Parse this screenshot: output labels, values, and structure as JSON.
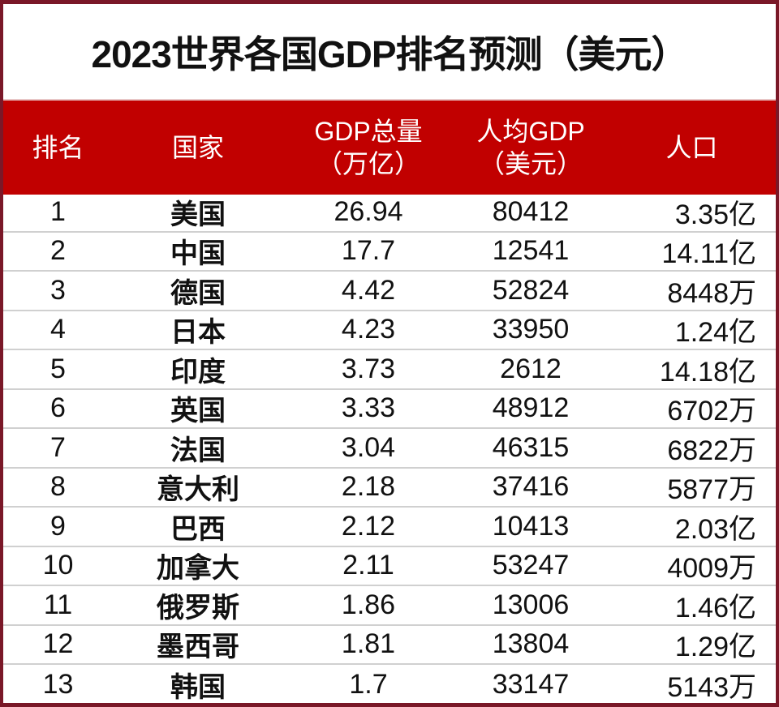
{
  "title": "2023世界各国GDP排名预测（美元）",
  "colors": {
    "header_bg": "#c10000",
    "border": "#7a1828",
    "divider": "#d0d0d0"
  },
  "headers": {
    "rank": "排名",
    "country": "国家",
    "gdp_line1": "GDP总量",
    "gdp_line2": "（万亿）",
    "per_capita_line1": "人均GDP",
    "per_capita_line2": "（美元）",
    "population": "人口"
  },
  "rows": [
    {
      "rank": "1",
      "country": "美国",
      "gdp": "26.94",
      "per_capita": "80412",
      "population": "3.35亿"
    },
    {
      "rank": "2",
      "country": "中国",
      "gdp": "17.7",
      "per_capita": "12541",
      "population": "14.11亿"
    },
    {
      "rank": "3",
      "country": "德国",
      "gdp": "4.42",
      "per_capita": "52824",
      "population": "8448万"
    },
    {
      "rank": "4",
      "country": "日本",
      "gdp": "4.23",
      "per_capita": "33950",
      "population": "1.24亿"
    },
    {
      "rank": "5",
      "country": "印度",
      "gdp": "3.73",
      "per_capita": "2612",
      "population": "14.18亿"
    },
    {
      "rank": "6",
      "country": "英国",
      "gdp": "3.33",
      "per_capita": "48912",
      "population": "6702万"
    },
    {
      "rank": "7",
      "country": "法国",
      "gdp": "3.04",
      "per_capita": "46315",
      "population": "6822万"
    },
    {
      "rank": "8",
      "country": "意大利",
      "gdp": "2.18",
      "per_capita": "37416",
      "population": "5877万"
    },
    {
      "rank": "9",
      "country": "巴西",
      "gdp": "2.12",
      "per_capita": "10413",
      "population": "2.03亿"
    },
    {
      "rank": "10",
      "country": "加拿大",
      "gdp": "2.11",
      "per_capita": "53247",
      "population": "4009万"
    },
    {
      "rank": "11",
      "country": "俄罗斯",
      "gdp": "1.86",
      "per_capita": "13006",
      "population": "1.46亿"
    },
    {
      "rank": "12",
      "country": "墨西哥",
      "gdp": "1.81",
      "per_capita": "13804",
      "population": "1.29亿"
    },
    {
      "rank": "13",
      "country": "韩国",
      "gdp": "1.7",
      "per_capita": "33147",
      "population": "5143万"
    }
  ]
}
